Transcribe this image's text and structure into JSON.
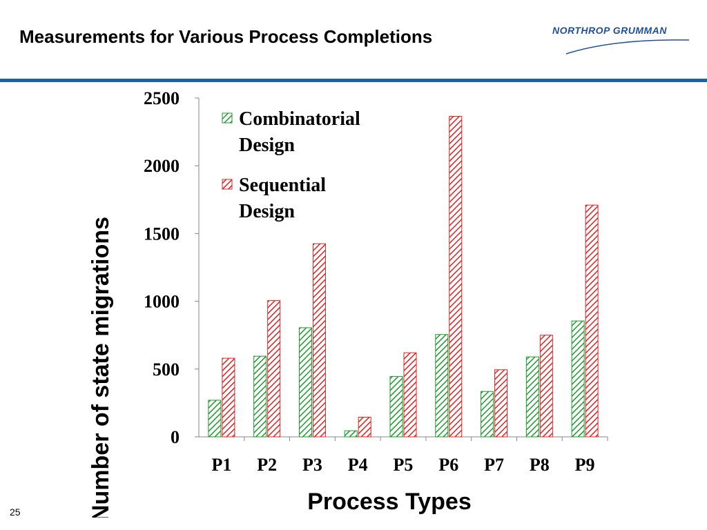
{
  "slide": {
    "title": "Measurements for Various Process Completions",
    "number": "25"
  },
  "logo": {
    "text": "NORTHROP GRUMMAN"
  },
  "colors": {
    "combinatorial": "#1a9a2a",
    "sequential": "#e02020",
    "rule": "#1f5fa8",
    "logo": "#1f4e9a"
  },
  "chart_data": {
    "type": "bar",
    "categories": [
      "P1",
      "P2",
      "P3",
      "P4",
      "P5",
      "P6",
      "P7",
      "P8",
      "P9"
    ],
    "series": [
      {
        "name": "Combinatorial Design",
        "legend_lines": [
          "Combinatorial",
          "Design"
        ],
        "values": [
          270,
          595,
          805,
          45,
          445,
          755,
          335,
          590,
          855
        ],
        "pattern": "green-hatch"
      },
      {
        "name": "Sequential Design",
        "legend_lines": [
          "Sequential",
          "Design"
        ],
        "values": [
          580,
          1005,
          1425,
          145,
          620,
          2365,
          495,
          750,
          1710
        ],
        "pattern": "red-hatch"
      }
    ],
    "xlabel": "Process Types",
    "ylabel": "Number of state migrations",
    "ylim": [
      0,
      2500
    ],
    "yticks": [
      0,
      500,
      1000,
      1500,
      2000,
      2500
    ],
    "grid": false,
    "legend": "top-left"
  }
}
